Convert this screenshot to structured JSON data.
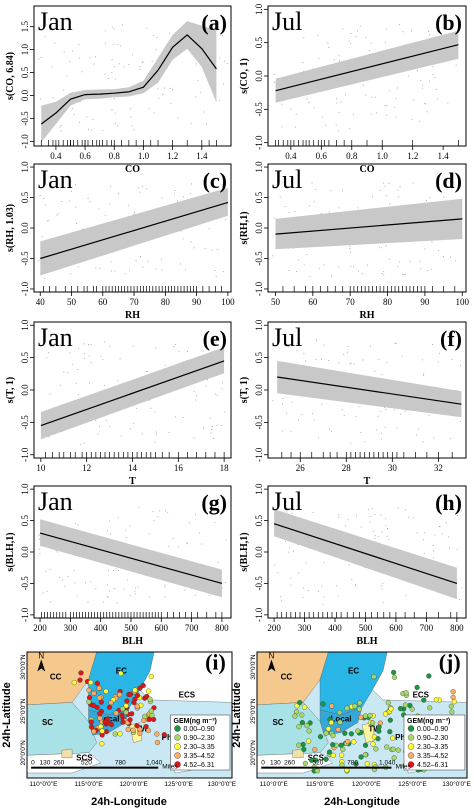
{
  "chart_data": [
    {
      "id": "a",
      "type": "line",
      "month": "Jan",
      "panel_letter": "(a)",
      "xlabel": "CO",
      "ylabel": "s(CO, 6.84)",
      "xlim": [
        0.25,
        1.6
      ],
      "ylim": [
        -1.1,
        1.95
      ],
      "xticks": [
        0.4,
        0.6,
        0.8,
        1.0,
        1.2,
        1.4
      ],
      "xtick_labels": [
        "0.4",
        "0.6",
        "0.8",
        "1.0",
        "1.2",
        "1.4"
      ],
      "yticks": [
        -1,
        -0.5,
        0,
        0.5,
        1,
        1.5
      ],
      "ytick_labels": [
        "-1.0",
        "-0.5",
        "0.0",
        "0.5",
        "1.0",
        "1.5"
      ],
      "fit": {
        "x": [
          0.3,
          0.4,
          0.5,
          0.6,
          0.7,
          0.8,
          0.9,
          1.0,
          1.1,
          1.2,
          1.3,
          1.4,
          1.5
        ],
        "y": [
          -0.62,
          -0.38,
          -0.08,
          0.02,
          0.03,
          0.05,
          0.08,
          0.18,
          0.55,
          1.05,
          1.32,
          1.02,
          0.58
        ],
        "lower": [
          -1.02,
          -0.62,
          -0.22,
          -0.08,
          -0.07,
          -0.04,
          -0.02,
          0.05,
          0.28,
          0.78,
          1.02,
          0.62,
          -0.15
        ],
        "upper": [
          -0.22,
          -0.14,
          0.06,
          0.12,
          0.13,
          0.14,
          0.18,
          0.32,
          0.82,
          1.32,
          1.62,
          1.52,
          1.42
        ]
      },
      "rug": [
        0.3,
        0.35,
        0.38,
        0.4,
        0.42,
        0.45,
        0.48,
        0.5,
        0.5,
        0.52,
        0.55,
        0.58,
        0.6,
        0.6,
        0.62,
        0.65,
        0.68,
        0.7,
        0.72,
        0.75,
        0.78,
        0.8,
        0.85,
        0.9,
        0.95,
        1.0,
        1.05,
        1.1,
        1.2,
        1.3,
        1.4,
        1.45,
        1.5
      ]
    },
    {
      "id": "b",
      "type": "line",
      "month": "Jul",
      "panel_letter": "(b)",
      "xlabel": "CO",
      "ylabel": "s(CO, 1)",
      "xlim": [
        0.25,
        1.55
      ],
      "ylim": [
        -1.05,
        1.05
      ],
      "xticks": [
        0.4,
        0.6,
        0.8,
        1.0,
        1.2,
        1.4
      ],
      "xtick_labels": [
        "0.4",
        "0.6",
        "0.8",
        "1.0",
        "1.2",
        "1.4"
      ],
      "yticks": [
        -1,
        -0.5,
        0,
        0.5,
        1
      ],
      "ytick_labels": [
        "-1.0",
        "-0.5",
        "0.0",
        "0.5",
        "1.0"
      ],
      "fit": {
        "x": [
          0.3,
          1.5
        ],
        "y": [
          -0.22,
          0.47
        ],
        "lower": [
          -0.4,
          0.26
        ],
        "upper": [
          -0.04,
          0.68
        ]
      },
      "rug": [
        0.3,
        0.32,
        0.35,
        0.38,
        0.4,
        0.42,
        0.45,
        0.48,
        0.5,
        0.52,
        0.55,
        0.58,
        0.6,
        0.62,
        0.65,
        0.7,
        0.75,
        0.8,
        0.9,
        1.0,
        1.2,
        1.5
      ]
    },
    {
      "id": "c",
      "type": "line",
      "month": "Jan",
      "panel_letter": "(c)",
      "xlabel": "RH",
      "ylabel": "s(RH, 1.03)",
      "xlim": [
        38,
        101
      ],
      "ylim": [
        -1.05,
        1.05
      ],
      "xticks": [
        40,
        50,
        60,
        70,
        80,
        90,
        100
      ],
      "xtick_labels": [
        "40",
        "50",
        "60",
        "70",
        "80",
        "90",
        "100"
      ],
      "yticks": [
        -1,
        -0.5,
        0,
        0.5,
        1
      ],
      "ytick_labels": [
        "-1.0",
        "-0.5",
        "0.0",
        "0.5",
        "1.0"
      ],
      "fit": {
        "x": [
          40,
          100
        ],
        "y": [
          -0.5,
          0.42
        ],
        "lower": [
          -0.78,
          0.2
        ],
        "upper": [
          -0.22,
          0.66
        ]
      },
      "rug": [
        41,
        43,
        45,
        48,
        50,
        52,
        54,
        55,
        57,
        58,
        60,
        61,
        62,
        63,
        64,
        65,
        66,
        67,
        68,
        69,
        70,
        71,
        72,
        73,
        74,
        75,
        76,
        77,
        78,
        79,
        80,
        81,
        82,
        83,
        84,
        85,
        86,
        87,
        88,
        89,
        90,
        92,
        94,
        96,
        98
      ]
    },
    {
      "id": "d",
      "type": "line",
      "month": "Jul",
      "panel_letter": "(d)",
      "xlabel": "RH",
      "ylabel": "s(RH,1)",
      "xlim": [
        48,
        101
      ],
      "ylim": [
        -1.05,
        1.05
      ],
      "xticks": [
        50,
        60,
        70,
        80,
        90,
        100
      ],
      "xtick_labels": [
        "50",
        "60",
        "70",
        "80",
        "90",
        "100"
      ],
      "yticks": [
        -1,
        -0.5,
        0,
        0.5,
        1
      ],
      "ytick_labels": [
        "-1.0",
        "-0.5",
        "0.0",
        "0.5",
        "1.0"
      ],
      "fit": {
        "x": [
          50,
          100
        ],
        "y": [
          -0.1,
          0.15
        ],
        "lower": [
          -0.35,
          -0.18
        ],
        "upper": [
          0.15,
          0.48
        ]
      },
      "rug": [
        52,
        55,
        58,
        60,
        62,
        64,
        66,
        68,
        70,
        71,
        72,
        73,
        74,
        75,
        76,
        77,
        78,
        79,
        80,
        81,
        82,
        83,
        84,
        85,
        86,
        87,
        88,
        89,
        90,
        92,
        95,
        98
      ]
    },
    {
      "id": "e",
      "type": "line",
      "month": "Jan",
      "panel_letter": "(e)",
      "xlabel": "T",
      "ylabel": "s(T, 1)",
      "xlim": [
        9.7,
        18.3
      ],
      "ylim": [
        -1.05,
        1.05
      ],
      "xticks": [
        10,
        12,
        14,
        16,
        18
      ],
      "xtick_labels": [
        "10",
        "12",
        "14",
        "16",
        "18"
      ],
      "yticks": [
        -1,
        -0.5,
        0,
        0.5,
        1
      ],
      "ytick_labels": [
        "-1.0",
        "-0.5",
        "0.0",
        "0.5",
        "1.0"
      ],
      "fit": {
        "x": [
          10,
          18
        ],
        "y": [
          -0.55,
          0.45
        ],
        "lower": [
          -0.76,
          0.26
        ],
        "upper": [
          -0.34,
          0.66
        ]
      },
      "rug": [
        10.2,
        10.5,
        10.8,
        11,
        11.3,
        11.5,
        11.8,
        12,
        12.2,
        12.4,
        12.6,
        12.8,
        13,
        13.2,
        13.4,
        13.6,
        13.8,
        14,
        14.2,
        14.4,
        14.6,
        14.8,
        15,
        15.3,
        15.6,
        16,
        16.4,
        16.8,
        17.2,
        17.6,
        18
      ]
    },
    {
      "id": "f",
      "type": "line",
      "month": "Jul",
      "panel_letter": "(f)",
      "xlabel": "T",
      "ylabel": "s(T, 1)",
      "xlim": [
        24.6,
        33.2
      ],
      "ylim": [
        -1.05,
        1.05
      ],
      "xticks": [
        26,
        28,
        30,
        32
      ],
      "xtick_labels": [
        "26",
        "28",
        "30",
        "32"
      ],
      "yticks": [
        -1,
        -0.5,
        0,
        0.5,
        1
      ],
      "ytick_labels": [
        "-1.0",
        "-0.5",
        "0.0",
        "0.5",
        "1.0"
      ],
      "fit": {
        "x": [
          25,
          33
        ],
        "y": [
          0.2,
          -0.22
        ],
        "lower": [
          -0.05,
          -0.42
        ],
        "upper": [
          0.45,
          -0.02
        ]
      },
      "rug": [
        25.2,
        25.6,
        26,
        26.5,
        27,
        27.3,
        27.6,
        28,
        28.2,
        28.4,
        28.6,
        28.8,
        29,
        29.2,
        29.4,
        29.6,
        29.8,
        30,
        30.2,
        30.5,
        31,
        31.5,
        32,
        32.6
      ]
    },
    {
      "id": "g",
      "type": "line",
      "month": "Jan",
      "panel_letter": "(g)",
      "xlabel": "BLH",
      "ylabel": "s(BLH,1)",
      "xlim": [
        180,
        830
      ],
      "ylim": [
        -1.05,
        1.05
      ],
      "xticks": [
        200,
        300,
        400,
        500,
        600,
        700,
        800
      ],
      "xtick_labels": [
        "200",
        "300",
        "400",
        "500",
        "600",
        "700",
        "800"
      ],
      "yticks": [
        -1,
        -0.5,
        0,
        0.5,
        1
      ],
      "ytick_labels": [
        "-1.0",
        "-0.5",
        "0.0",
        "0.5",
        "1.0"
      ],
      "fit": {
        "x": [
          200,
          800
        ],
        "y": [
          0.3,
          -0.5
        ],
        "lower": [
          0.1,
          -0.72
        ],
        "upper": [
          0.52,
          -0.28
        ]
      },
      "rug": [
        205,
        215,
        225,
        235,
        245,
        255,
        265,
        275,
        285,
        300,
        310,
        320,
        330,
        340,
        350,
        360,
        370,
        380,
        390,
        400,
        410,
        420,
        430,
        440,
        450,
        460,
        470,
        480,
        490,
        500,
        510,
        520,
        530,
        540,
        550,
        560,
        570,
        580,
        590,
        600,
        620,
        640,
        660,
        680,
        700,
        720,
        750,
        780,
        800
      ]
    },
    {
      "id": "h",
      "type": "line",
      "month": "Jul",
      "panel_letter": "(h)",
      "xlabel": "BLH",
      "ylabel": "s(BLH,1)",
      "xlim": [
        180,
        830
      ],
      "ylim": [
        -1.05,
        1.05
      ],
      "xticks": [
        200,
        300,
        400,
        500,
        600,
        700,
        800
      ],
      "xtick_labels": [
        "200",
        "300",
        "400",
        "500",
        "600",
        "700",
        "800"
      ],
      "yticks": [
        -1,
        -0.5,
        0,
        0.5,
        1
      ],
      "ytick_labels": [
        "-1.0",
        "-0.5",
        "0.0",
        "0.5",
        "1.0"
      ],
      "fit": {
        "x": [
          200,
          800
        ],
        "y": [
          0.45,
          -0.5
        ],
        "lower": [
          0.25,
          -0.75
        ],
        "upper": [
          0.68,
          -0.25
        ]
      },
      "rug": [
        210,
        225,
        240,
        255,
        270,
        285,
        300,
        315,
        330,
        345,
        360,
        375,
        390,
        405,
        420,
        440,
        460,
        480,
        500,
        520,
        540,
        560,
        580,
        600,
        630,
        660,
        700,
        740,
        780,
        800
      ]
    }
  ],
  "maps": {
    "y_title": "24h-Latitude",
    "x_title": "24h-Longitude",
    "lat_ticks": [
      "30°0'0\"N",
      "25°0'0\"N",
      "20°0'0\"N"
    ],
    "lon_ticks": [
      "110°0'0\"E",
      "115°0'0\"E",
      "120°0'0\"E",
      "125°0'0\"E",
      "130°0'0\"E"
    ],
    "scale_labels": [
      "0",
      "130",
      "260",
      "520",
      "780",
      "1,040"
    ],
    "scale_unit": "Miles",
    "north": "N",
    "legend_title": "GEM(ng m⁻³)",
    "legend": [
      {
        "label": "0.00–0.90",
        "color": "#1a9641"
      },
      {
        "label": "0.90–2.30",
        "color": "#a6d96a"
      },
      {
        "label": "2.30–3.35",
        "color": "#ffff33"
      },
      {
        "label": "3.35–4.52",
        "color": "#fdae61"
      },
      {
        "label": "4.52–6.31",
        "color": "#d7191c"
      }
    ],
    "panels": [
      {
        "letter": "(i)",
        "regions": {
          "cc": "CC",
          "ec": "EC",
          "ecs": "ECS",
          "sc": "SC",
          "local": "Local",
          "tw": "TW",
          "phis": "PhiS",
          "scs": "SCS"
        }
      },
      {
        "letter": "(j)",
        "regions": {
          "cc": "CC",
          "ec": "EC",
          "ecs": "ECS",
          "sc": "SC",
          "local": "Local",
          "tw": "TW",
          "phis": "PhiS",
          "scs": "SCS"
        }
      }
    ]
  }
}
